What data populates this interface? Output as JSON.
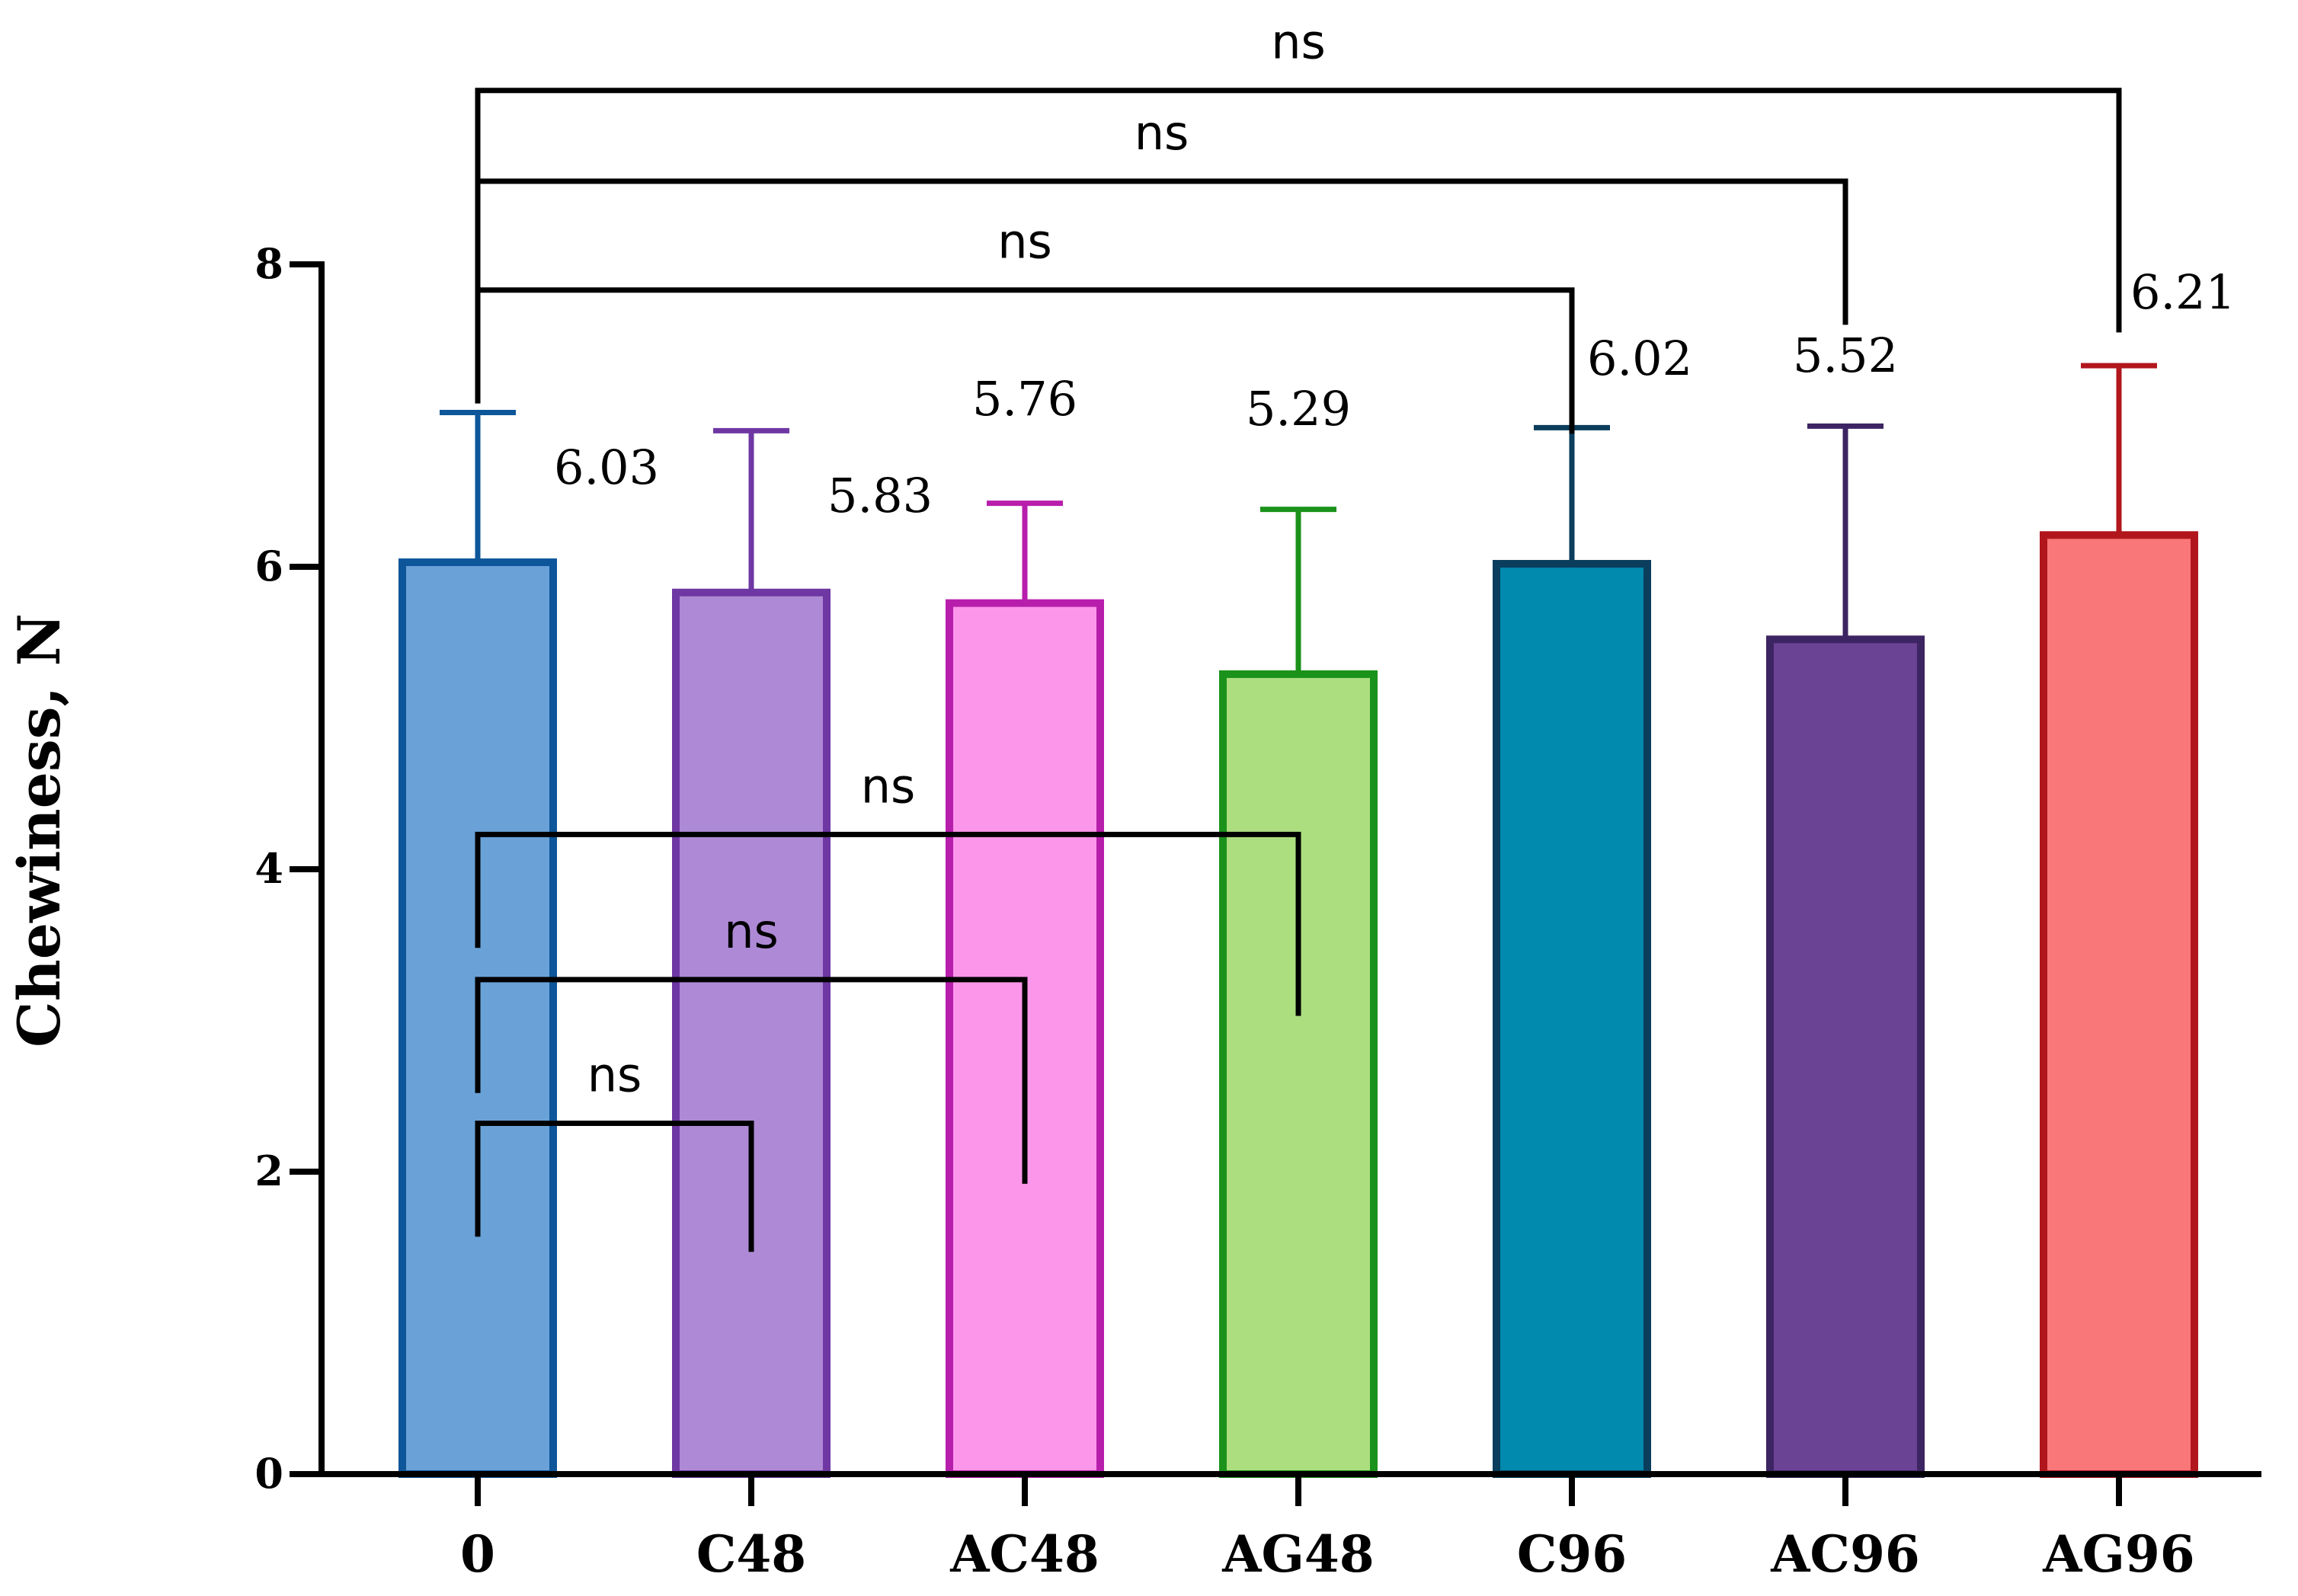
{
  "chart_data": {
    "type": "bar",
    "title": "",
    "xlabel": "",
    "ylabel": "Chewiness, N",
    "ylim": [
      0,
      8
    ],
    "yticks": [
      0,
      2,
      4,
      6,
      8
    ],
    "categories": [
      "0",
      "C48",
      "AC48",
      "AG48",
      "C96",
      "AC96",
      "AG96"
    ],
    "values": [
      6.03,
      5.83,
      5.76,
      5.29,
      6.02,
      5.52,
      6.21
    ],
    "value_labels": [
      "6.03",
      "5.83",
      "5.76",
      "5.29",
      "6.02",
      "5.52",
      "6.21"
    ],
    "error_upper": [
      7.02,
      6.9,
      6.42,
      6.38,
      6.92,
      6.93,
      7.33
    ],
    "fill_colors": [
      "#6aa2d8",
      "#ae8ad6",
      "#fc96ea",
      "#acde80",
      "#0189ae",
      "#6b4395",
      "#f97679"
    ],
    "edge_colors": [
      "#0d5699",
      "#6e37a3",
      "#b81eac",
      "#1b921a",
      "#0b3d5c",
      "#3d2462",
      "#b1161d"
    ],
    "comparisons": [
      {
        "from": "0",
        "to": "C48",
        "label": "ns",
        "y": 2.32
      },
      {
        "from": "0",
        "to": "AC48",
        "label": "ns",
        "y": 3.27
      },
      {
        "from": "0",
        "to": "AG48",
        "label": "ns",
        "y": 4.23
      },
      {
        "from": "0",
        "to": "C96",
        "label": "ns",
        "y": 7.83
      },
      {
        "from": "0",
        "to": "AC96",
        "label": "ns",
        "y": 8.55
      },
      {
        "from": "0",
        "to": "AG96",
        "label": "ns",
        "y": 9.15
      }
    ]
  }
}
